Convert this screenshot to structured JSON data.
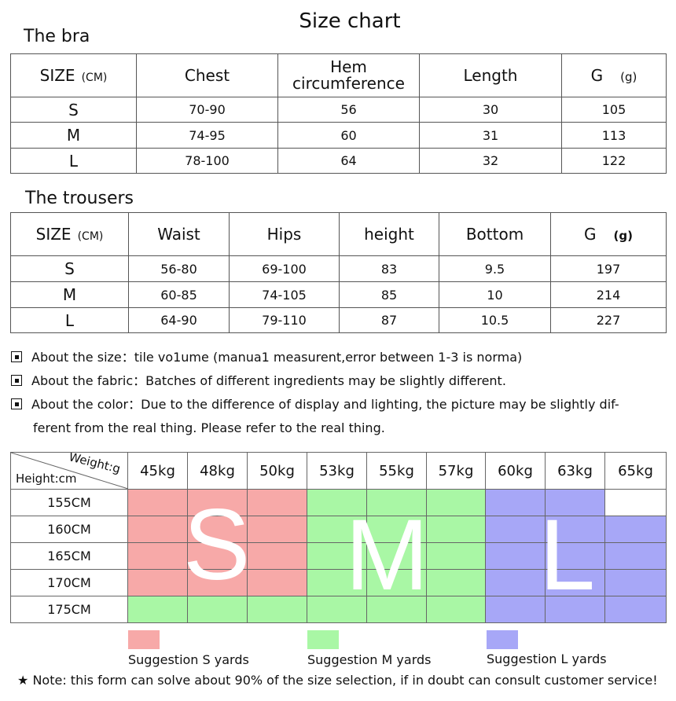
{
  "title": "Size chart",
  "bra": {
    "section_title": "The bra",
    "headers": {
      "size": "SIZE",
      "size_unit": "(CM)",
      "chest": "Chest",
      "hem_line1": "Hem",
      "hem_line2": "circumference",
      "length": "Length",
      "g": "G",
      "g_unit": "(g)"
    },
    "rows": [
      {
        "size": "S",
        "chest": "70-90",
        "hem": "56",
        "length": "30",
        "g": "105"
      },
      {
        "size": "M",
        "chest": "74-95",
        "hem": "60",
        "length": "31",
        "g": "113"
      },
      {
        "size": "L",
        "chest": "78-100",
        "hem": "64",
        "length": "32",
        "g": "122"
      }
    ]
  },
  "trousers": {
    "section_title": "The trousers",
    "headers": {
      "size": "SIZE",
      "size_unit": "(CM)",
      "waist": "Waist",
      "hips": "Hips",
      "height": "height",
      "bottom": "Bottom",
      "g": "G",
      "g_unit": "(g)"
    },
    "rows": [
      {
        "size": "S",
        "waist": "56-80",
        "hips": "69-100",
        "height": "83",
        "bottom": "9.5",
        "g": "197"
      },
      {
        "size": "M",
        "waist": "60-85",
        "hips": "74-105",
        "height": "85",
        "bottom": "10",
        "g": "214"
      },
      {
        "size": "L",
        "waist": "64-90",
        "hips": "79-110",
        "height": "87",
        "bottom": "10.5",
        "g": "227"
      }
    ]
  },
  "notes": [
    "About the size：tile vo1ume (manua1 measurent,error between 1-3 is norma)",
    "About the fabric：Batches of different ingredients may be slightly different.",
    "About the color：Due to the difference of display and lighting, the picture may be slightly dif-",
    "ferent from the real thing. Please refer to the real thing."
  ],
  "grid": {
    "corner_weight": "Weight:g",
    "corner_height": "Height:cm",
    "weights": [
      "45kg",
      "48kg",
      "50kg",
      "53kg",
      "55kg",
      "57kg",
      "60kg",
      "63kg",
      "65kg"
    ],
    "heights": [
      "155CM",
      "160CM",
      "165CM",
      "170CM",
      "175CM"
    ],
    "cells": [
      [
        "S",
        "S",
        "S",
        "M",
        "M",
        "M",
        "L",
        "L",
        ""
      ],
      [
        "S",
        "S",
        "S",
        "M",
        "M",
        "M",
        "L",
        "L",
        "L"
      ],
      [
        "S",
        "S",
        "S",
        "M",
        "M",
        "M",
        "L",
        "L",
        "L"
      ],
      [
        "S",
        "S",
        "S",
        "M",
        "M",
        "M",
        "L",
        "L",
        "L"
      ],
      [
        "M",
        "M",
        "M",
        "M",
        "M",
        "M",
        "L",
        "L",
        "L"
      ]
    ],
    "letters": {
      "s": "S",
      "m": "M",
      "l": "L"
    },
    "colors": {
      "S": "#f7a9a8",
      "M": "#a9f7a5",
      "L": "#a7a7f7"
    }
  },
  "legend": {
    "s": "Suggestion S yards",
    "m": "Suggestion M yards",
    "l": "Suggestion L yards"
  },
  "footnote_star": "★",
  "footnote": "Note: this form can solve about 90% of the size selection, if in doubt can consult customer service!"
}
